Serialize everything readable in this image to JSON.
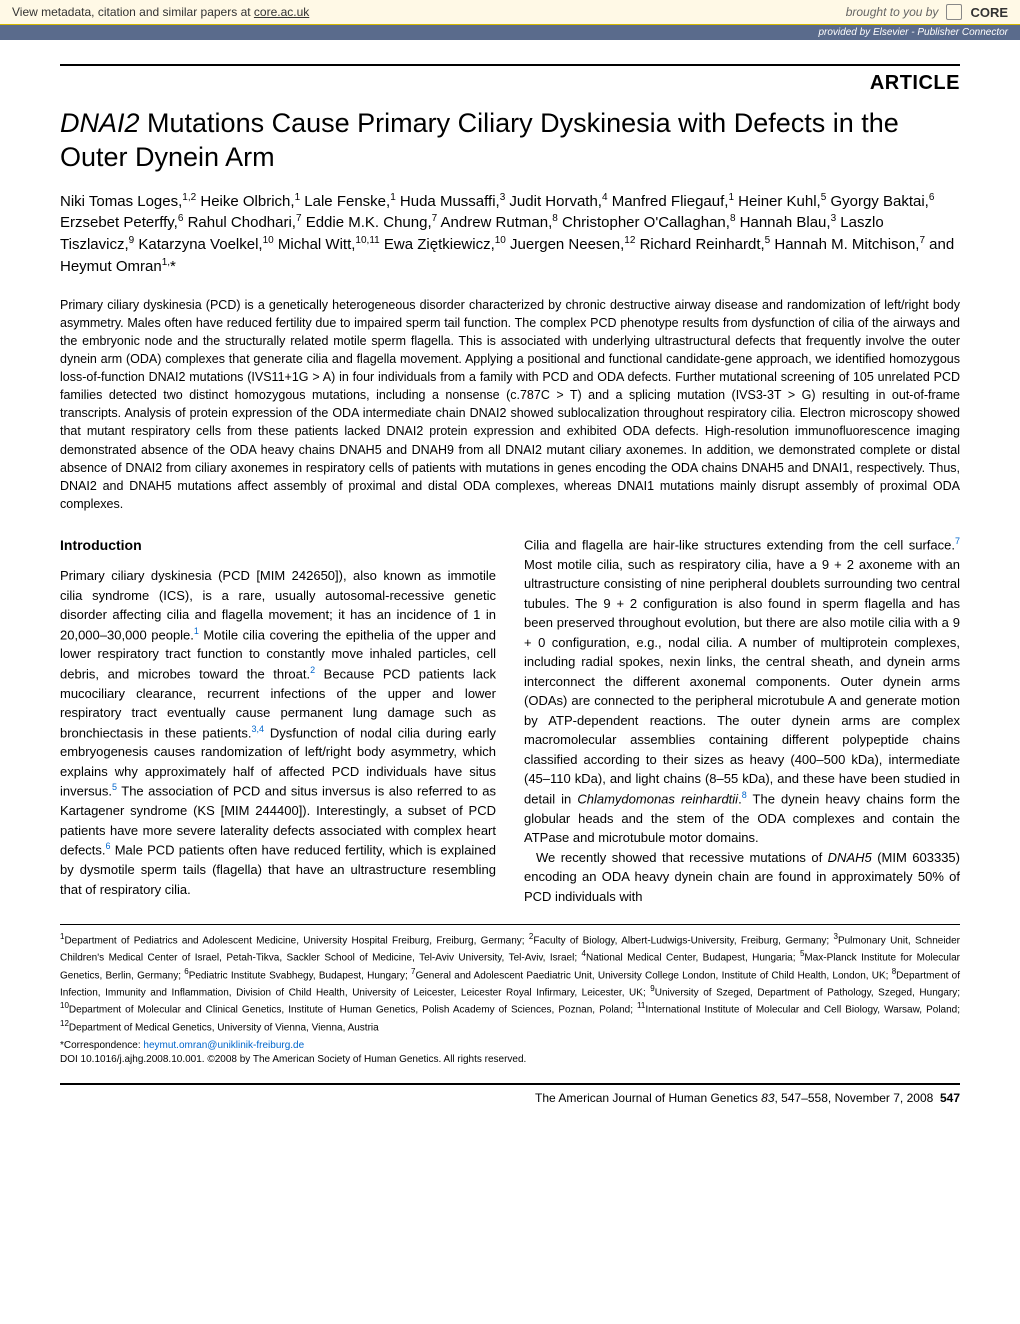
{
  "core_banner": {
    "left_prefix": "View metadata, citation and similar papers at ",
    "left_link": "core.ac.uk",
    "right_text": "brought to you by",
    "logo": "CORE"
  },
  "provider_bar": {
    "prefix": "provided by ",
    "link": "Elsevier - Publisher Connector"
  },
  "article_label": "ARTICLE",
  "title_html": "<em>DNAI2</em> Mutations Cause Primary Ciliary Dyskinesia with Defects in the Outer Dynein Arm",
  "authors_html": "Niki Tomas Loges,<sup>1,2</sup> Heike Olbrich,<sup>1</sup> Lale Fenske,<sup>1</sup> Huda Mussaffi,<sup>3</sup> Judit Horvath,<sup>4</sup> Manfred Fliegauf,<sup>1</sup> Heiner Kuhl,<sup>5</sup> Gyorgy Baktai,<sup>6</sup> Erzsebet Peterffy,<sup>6</sup> Rahul Chodhari,<sup>7</sup> Eddie M.K. Chung,<sup>7</sup> Andrew Rutman,<sup>8</sup> Christopher O'Callaghan,<sup>8</sup> Hannah Blau,<sup>3</sup> Laszlo Tiszlavicz,<sup>9</sup> Katarzyna Voelkel,<sup>10</sup> Michal Witt,<sup>10,11</sup> Ewa Ziętkiewicz,<sup>10</sup> Juergen Neesen,<sup>12</sup> Richard Reinhardt,<sup>5</sup> Hannah M. Mitchison,<sup>7</sup> and Heymut Omran<sup>1,</sup>*",
  "abstract": "Primary ciliary dyskinesia (PCD) is a genetically heterogeneous disorder characterized by chronic destructive airway disease and randomization of left/right body asymmetry. Males often have reduced fertility due to impaired sperm tail function. The complex PCD phenotype results from dysfunction of cilia of the airways and the embryonic node and the structurally related motile sperm flagella. This is associated with underlying ultrastructural defects that frequently involve the outer dynein arm (ODA) complexes that generate cilia and flagella movement. Applying a positional and functional candidate-gene approach, we identified homozygous loss-of-function DNAI2 mutations (IVS11+1G > A) in four individuals from a family with PCD and ODA defects. Further mutational screening of 105 unrelated PCD families detected two distinct homozygous mutations, including a nonsense (c.787C > T) and a splicing mutation (IVS3-3T > G) resulting in out-of-frame transcripts. Analysis of protein expression of the ODA intermediate chain DNAI2 showed sublocalization throughout respiratory cilia. Electron microscopy showed that mutant respiratory cells from these patients lacked DNAI2 protein expression and exhibited ODA defects. High-resolution immunofluorescence imaging demonstrated absence of the ODA heavy chains DNAH5 and DNAH9 from all DNAI2 mutant ciliary axonemes. In addition, we demonstrated complete or distal absence of DNAI2 from ciliary axonemes in respiratory cells of patients with mutations in genes encoding the ODA chains DNAH5 and DNAI1, respectively. Thus, DNAI2 and DNAH5 mutations affect assembly of proximal and distal ODA complexes, whereas DNAI1 mutations mainly disrupt assembly of proximal ODA complexes.",
  "section_heading": "Introduction",
  "col1_p1_html": "Primary ciliary dyskinesia (PCD [MIM 242650]), also known as immotile cilia syndrome (ICS), is a rare, usually autosomal-recessive genetic disorder affecting cilia and flagella movement; it has an incidence of 1 in 20,000–30,000 people.<sup>1</sup> Motile cilia covering the epithelia of the upper and lower respiratory tract function to constantly move inhaled particles, cell debris, and microbes toward the throat.<sup>2</sup> Because PCD patients lack mucociliary clearance, recurrent infections of the upper and lower respiratory tract eventually cause permanent lung damage such as bronchiectasis in these patients.<sup>3,4</sup> Dysfunction of nodal cilia during early embryogenesis causes randomization of left/right body asymmetry, which explains why approximately half of affected PCD individuals have situs inversus.<sup>5</sup> The association of PCD and situs inversus is also referred to as Kartagener syndrome (KS [MIM 244400]). Interestingly, a subset of PCD patients have more severe laterality defects associated with complex heart defects.<sup>6</sup> Male PCD patients often have reduced fertility, which is explained by dysmotile sperm tails (flagella) that have an ultrastructure resembling that of respiratory cilia.",
  "col2_p1_html": "Cilia and flagella are hair-like structures extending from the cell surface.<sup>7</sup> Most motile cilia, such as respiratory cilia, have a 9 + 2 axoneme with an ultrastructure consisting of nine peripheral doublets surrounding two central tubules. The 9 + 2 configuration is also found in sperm flagella and has been preserved throughout evolution, but there are also motile cilia with a 9 + 0 configuration, e.g., nodal cilia. A number of multiprotein complexes, including radial spokes, nexin links, the central sheath, and dynein arms interconnect the different axonemal components. Outer dynein arms (ODAs) are connected to the peripheral microtubule A and generate motion by ATP-dependent reactions. The outer dynein arms are complex macromolecular assemblies containing different polypeptide chains classified according to their sizes as heavy (400–500 kDa), intermediate (45–110 kDa), and light chains (8–55 kDa), and these have been studied in detail in <em>Chlamydomonas reinhardtii</em>.<sup>8</sup> The dynein heavy chains form the globular heads and the stem of the ODA complexes and contain the ATPase and microtubule motor domains.",
  "col2_p2_html": "We recently showed that recessive mutations of <em>DNAH5</em> (MIM 603335) encoding an ODA heavy dynein chain are found in approximately 50% of PCD individuals with",
  "affiliations_html": "<sup>1</sup>Department of Pediatrics and Adolescent Medicine, University Hospital Freiburg, Freiburg, Germany; <sup>2</sup>Faculty of Biology, Albert-Ludwigs-University, Freiburg, Germany; <sup>3</sup>Pulmonary Unit, Schneider Children's Medical Center of Israel, Petah-Tikva, Sackler School of Medicine, Tel-Aviv University, Tel-Aviv, Israel; <sup>4</sup>National Medical Center, Budapest, Hungaria; <sup>5</sup>Max-Planck Institute for Molecular Genetics, Berlin, Germany; <sup>6</sup>Pediatric Institute Svabhegy, Budapest, Hungary; <sup>7</sup>General and Adolescent Paediatric Unit, University College London, Institute of Child Health, London, UK; <sup>8</sup>Department of Infection, Immunity and Inflammation, Division of Child Health, University of Leicester, Leicester Royal Infirmary, Leicester, UK; <sup>9</sup>University of Szeged, Department of Pathology, Szeged, Hungary; <sup>10</sup>Department of Molecular and Clinical Genetics, Institute of Human Genetics, Polish Academy of Sciences, Poznan, Poland; <sup>11</sup>International Institute of Molecular and Cell Biology, Warsaw, Poland; <sup>12</sup>Department of Medical Genetics, University of Vienna, Vienna, Austria",
  "correspondence_prefix": "*Correspondence: ",
  "correspondence_email": "heymut.omran@uniklinik-freiburg.de",
  "doi": "DOI 10.1016/j.ajhg.2008.10.001. ©2008 by The American Society of Human Genetics. All rights reserved.",
  "footer_html": "The American Journal of Human Genetics <em>83</em>, 547–558, November 7, 2008&nbsp;&nbsp;<strong>547</strong>",
  "colors": {
    "banner_bg": "#fff9e6",
    "provider_bg": "#5a6b8c",
    "link_blue": "#0066cc"
  }
}
